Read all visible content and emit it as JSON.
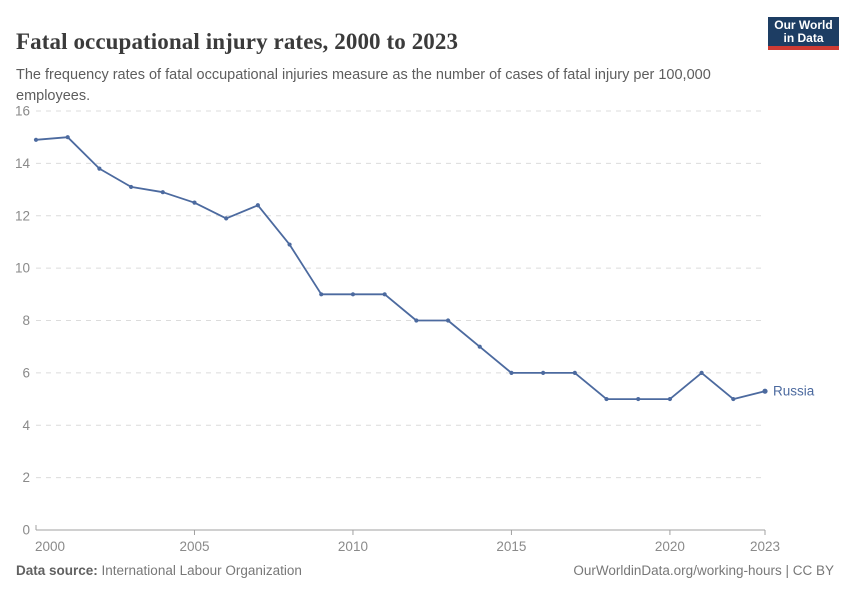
{
  "header": {
    "title": "Fatal occupational injury rates, 2000 to 2023",
    "subtitle": "The frequency rates of fatal occupational injuries measure as the number of cases of fatal injury per 100,000 employees."
  },
  "logo": {
    "line1": "Our World",
    "line2": "in Data",
    "bg_color": "#1d3d63",
    "bar_color": "#cf3b33"
  },
  "chart_data": {
    "type": "line",
    "title": "Fatal occupational injury rates, 2000 to 2023",
    "x": [
      2000,
      2001,
      2002,
      2003,
      2004,
      2005,
      2006,
      2007,
      2008,
      2009,
      2010,
      2011,
      2012,
      2013,
      2014,
      2015,
      2016,
      2017,
      2018,
      2019,
      2020,
      2021,
      2022,
      2023
    ],
    "series": [
      {
        "name": "Russia",
        "color": "#4C6A9F",
        "values": [
          14.9,
          15,
          13.8,
          13.1,
          12.9,
          12.5,
          11.9,
          12.4,
          10.9,
          9,
          9,
          9,
          8,
          8,
          7,
          6,
          6,
          6,
          5,
          5,
          5,
          6,
          5,
          5.3
        ]
      }
    ],
    "xlabel": "",
    "ylabel": "",
    "ylim": [
      0,
      16
    ],
    "yticks": [
      0,
      2,
      4,
      6,
      8,
      10,
      12,
      14,
      16
    ],
    "xticks": [
      2000,
      2005,
      2010,
      2015,
      2020,
      2023
    ],
    "grid": "horizontal-dashed",
    "legend": "end-of-line-label",
    "colors": {
      "gridline": "#dcdcdc",
      "axis": "#a0a0a0",
      "tick_label": "#8a8a8a",
      "line": "#4C6A9F"
    }
  },
  "footer": {
    "source_label": "Data source:",
    "source_value": " International Labour Organization",
    "right_text": "OurWorldinData.org/working-hours | CC BY"
  }
}
